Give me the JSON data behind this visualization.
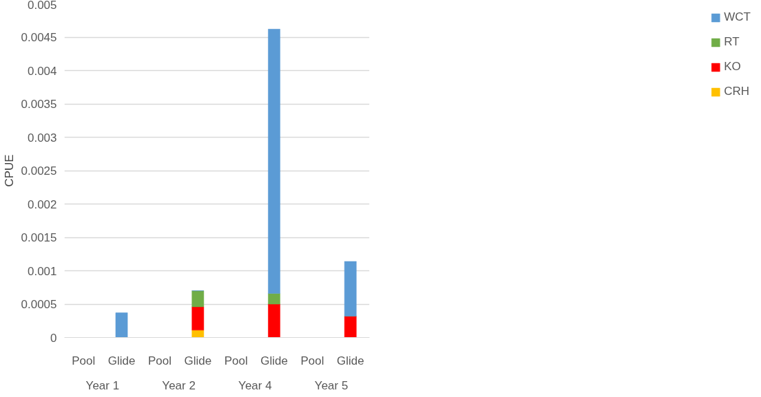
{
  "chart_data": {
    "type": "bar",
    "stacked": true,
    "ylabel": "CPUE",
    "categories": [
      "Pool",
      "Glide",
      "Pool",
      "Glide",
      "Pool",
      "Glide",
      "Pool",
      "Glide"
    ],
    "annotations": [
      "Year 1",
      "Year 2",
      "Year 4",
      "Year 5"
    ],
    "series": [
      {
        "name": "CRH",
        "color": "#ffc000",
        "values": [
          0,
          0,
          0,
          0.00011,
          0,
          0,
          0,
          0
        ]
      },
      {
        "name": "KO",
        "color": "#ff0000",
        "values": [
          0,
          0,
          0,
          0.00035,
          0,
          0.0005,
          0,
          0.00032
        ]
      },
      {
        "name": "RT",
        "color": "#70ad47",
        "values": [
          0,
          0,
          0,
          0.00024,
          0,
          0.00016,
          0,
          0
        ]
      },
      {
        "name": "WCT",
        "color": "#5b9bd5",
        "values": [
          0,
          0.00037,
          0,
          0,
          0,
          0.00396,
          0,
          0.00082
        ]
      }
    ],
    "ylim": [
      0,
      0.005
    ],
    "yticks": [
      0,
      0.0005,
      0.001,
      0.0015,
      0.002,
      0.0025,
      0.003,
      0.0035,
      0.004,
      0.0045,
      0.005
    ],
    "grid": "y",
    "legend": "right"
  }
}
